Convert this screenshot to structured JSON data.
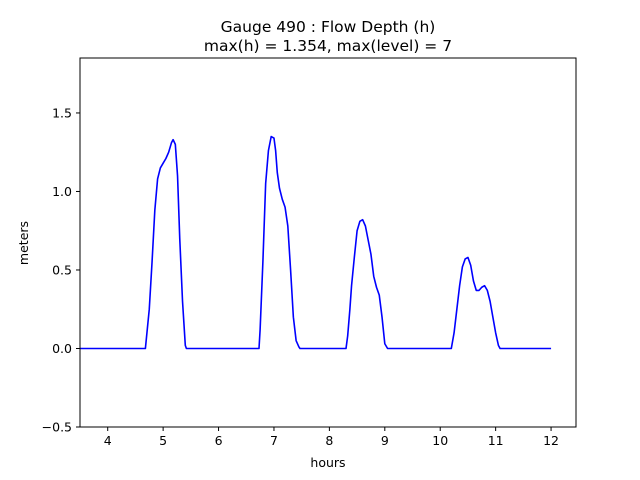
{
  "figure": {
    "title_line1": "Gauge 490 : Flow Depth (h)",
    "title_line2": "max(h) =   1.354,    max(level) = 7"
  },
  "chart_data": {
    "type": "line",
    "title": "Gauge 490 : Flow Depth (h)",
    "subtitle": "max(h) =   1.354,    max(level) = 7",
    "xlabel": "hours",
    "ylabel": "meters",
    "xlim": [
      3.5,
      12.45
    ],
    "ylim": [
      -0.5,
      1.85
    ],
    "xticks": [
      4,
      5,
      6,
      7,
      8,
      9,
      10,
      11,
      12
    ],
    "yticks": [
      -0.5,
      0.0,
      0.5,
      1.0,
      1.5
    ],
    "ytick_labels": [
      "−0.5",
      "0.0",
      "0.5",
      "1.0",
      "1.5"
    ],
    "grid": false,
    "series": [
      {
        "color": "#0000ff",
        "x": [
          3.5,
          4.68,
          4.75,
          4.8,
          4.85,
          4.9,
          4.95,
          5.0,
          5.05,
          5.1,
          5.15,
          5.18,
          5.22,
          5.26,
          5.3,
          5.35,
          5.4,
          5.42,
          6.5,
          6.73,
          6.75,
          6.8,
          6.85,
          6.9,
          6.95,
          7.0,
          7.03,
          7.06,
          7.1,
          7.15,
          7.2,
          7.25,
          7.3,
          7.35,
          7.4,
          7.45,
          7.47,
          8.3,
          8.33,
          8.37,
          8.4,
          8.45,
          8.5,
          8.55,
          8.6,
          8.65,
          8.7,
          8.75,
          8.8,
          8.85,
          8.9,
          8.95,
          9.0,
          9.05,
          10.2,
          10.25,
          10.3,
          10.35,
          10.4,
          10.45,
          10.5,
          10.55,
          10.6,
          10.65,
          10.7,
          10.75,
          10.8,
          10.85,
          10.9,
          10.95,
          11.0,
          11.05,
          11.08,
          12.0
        ],
        "y": [
          0.0,
          0.0,
          0.25,
          0.55,
          0.88,
          1.08,
          1.15,
          1.18,
          1.21,
          1.25,
          1.31,
          1.33,
          1.3,
          1.1,
          0.7,
          0.3,
          0.02,
          0.0,
          0.0,
          0.0,
          0.12,
          0.55,
          1.05,
          1.26,
          1.35,
          1.34,
          1.26,
          1.12,
          1.02,
          0.95,
          0.9,
          0.78,
          0.5,
          0.2,
          0.05,
          0.01,
          0.0,
          0.0,
          0.08,
          0.25,
          0.4,
          0.58,
          0.75,
          0.81,
          0.82,
          0.78,
          0.69,
          0.6,
          0.46,
          0.39,
          0.34,
          0.2,
          0.03,
          0.0,
          0.0,
          0.1,
          0.25,
          0.4,
          0.52,
          0.57,
          0.58,
          0.53,
          0.43,
          0.37,
          0.37,
          0.39,
          0.4,
          0.37,
          0.3,
          0.2,
          0.1,
          0.02,
          0.0,
          0.0
        ]
      }
    ]
  }
}
